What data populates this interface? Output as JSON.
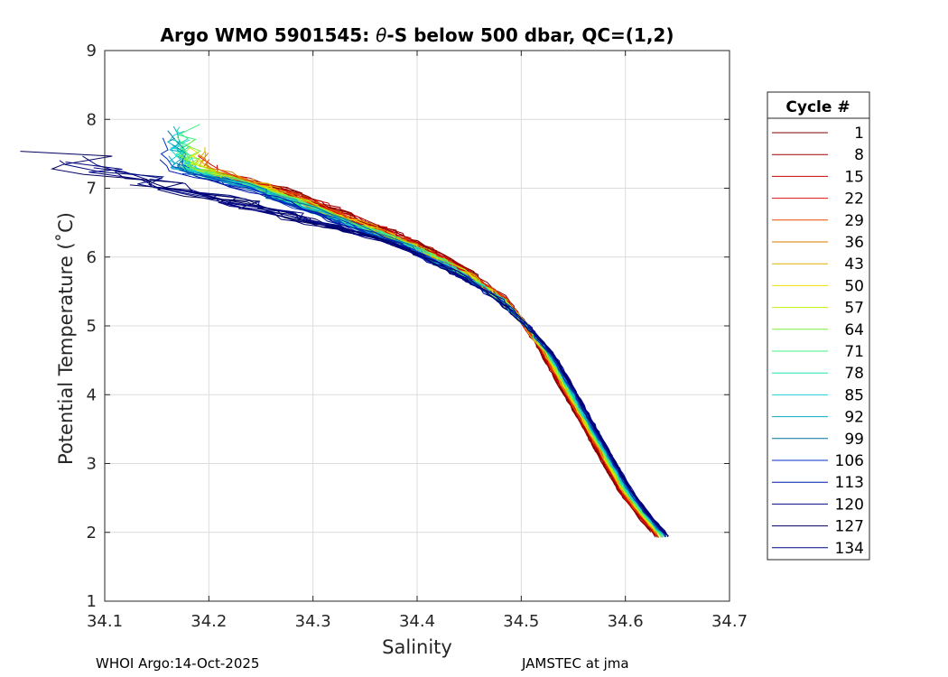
{
  "chart_data": {
    "type": "line",
    "title_prefix": "Argo WMO 5901545: ",
    "title_theta": "θ",
    "title_suffix": "-S below 500 dbar,  QC=(1,2)",
    "xlabel": "Salinity",
    "ylabel": "Potential Temperature (˚C)",
    "xlim": [
      34.1,
      34.7
    ],
    "ylim": [
      1,
      9
    ],
    "xticks": [
      "34.1",
      "34.2",
      "34.3",
      "34.4",
      "34.5",
      "34.6",
      "34.7"
    ],
    "yticks": [
      "1",
      "2",
      "3",
      "4",
      "5",
      "6",
      "7",
      "8",
      "9"
    ],
    "grid": true,
    "legend_title": "Cycle #",
    "legend_position": "outside-right",
    "series": [
      {
        "name": "1",
        "color": "#800000"
      },
      {
        "name": "8",
        "color": "#a00000"
      },
      {
        "name": "15",
        "color": "#cc0000"
      },
      {
        "name": "22",
        "color": "#e01010"
      },
      {
        "name": "29",
        "color": "#e84a00"
      },
      {
        "name": "36",
        "color": "#d87a00"
      },
      {
        "name": "43",
        "color": "#e0b000"
      },
      {
        "name": "50",
        "color": "#f0e000"
      },
      {
        "name": "57",
        "color": "#c0f000"
      },
      {
        "name": "64",
        "color": "#80f040"
      },
      {
        "name": "71",
        "color": "#40f080"
      },
      {
        "name": "78",
        "color": "#20e0b0"
      },
      {
        "name": "85",
        "color": "#20d0d8"
      },
      {
        "name": "92",
        "color": "#10a8c8"
      },
      {
        "name": "99",
        "color": "#0070a0"
      },
      {
        "name": "106",
        "color": "#0030c8"
      },
      {
        "name": "113",
        "color": "#0018a8"
      },
      {
        "name": "120",
        "color": "#000c80"
      },
      {
        "name": "127",
        "color": "#000060"
      },
      {
        "name": "134",
        "color": "#000080"
      }
    ],
    "mean_curve": {
      "theta": [
        7.3,
        7.0,
        6.6,
        6.2,
        5.8,
        5.4,
        5.0,
        4.6,
        4.2,
        3.8,
        3.4,
        3.0,
        2.6,
        2.2,
        1.95
      ],
      "salinity": [
        34.18,
        34.25,
        34.32,
        34.39,
        34.44,
        34.48,
        34.505,
        34.525,
        34.54,
        34.555,
        34.57,
        34.585,
        34.6,
        34.62,
        34.635
      ]
    }
  },
  "footer": {
    "left": "WHOI Argo:14-Oct-2025",
    "right": "JAMSTEC at jma"
  }
}
